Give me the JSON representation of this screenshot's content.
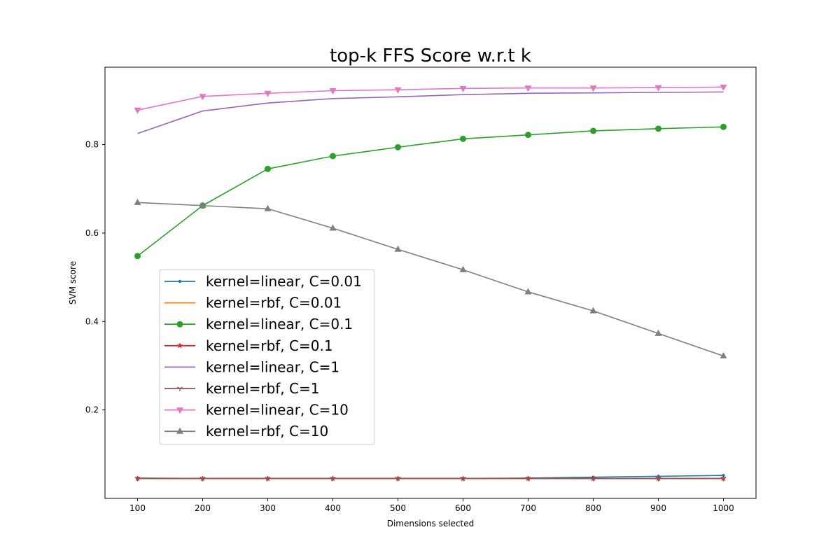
{
  "chart_data": {
    "type": "line",
    "title": "top-k FFS Score w.r.t k",
    "xlabel": "Dimensions selected",
    "ylabel": "SVM score",
    "x": [
      100,
      200,
      300,
      400,
      500,
      600,
      700,
      800,
      900,
      1000
    ],
    "xlim": [
      50,
      1050
    ],
    "ylim": [
      0.0,
      0.975
    ],
    "xticks": [
      100,
      200,
      300,
      400,
      500,
      600,
      700,
      800,
      900,
      1000
    ],
    "yticks": [
      0.2,
      0.4,
      0.6,
      0.8
    ],
    "grid": false,
    "legend_position": "center-left",
    "series": [
      {
        "name": "kernel=linear, C=0.01",
        "color": "#1f77b4",
        "marker": "point",
        "values": [
          0.046,
          0.045,
          0.045,
          0.045,
          0.045,
          0.045,
          0.046,
          0.048,
          0.05,
          0.052
        ]
      },
      {
        "name": "kernel=rbf, C=0.01",
        "color": "#ff7f0e",
        "marker": "none",
        "values": [
          0.045,
          0.045,
          0.045,
          0.045,
          0.045,
          0.045,
          0.045,
          0.045,
          0.045,
          0.045
        ]
      },
      {
        "name": "kernel=linear, C=0.1",
        "color": "#2ca02c",
        "marker": "circle",
        "values": [
          0.548,
          0.662,
          0.745,
          0.774,
          0.794,
          0.813,
          0.822,
          0.831,
          0.836,
          0.84
        ]
      },
      {
        "name": "kernel=rbf, C=0.1",
        "color": "#d62728",
        "marker": "star",
        "values": [
          0.045,
          0.045,
          0.045,
          0.045,
          0.045,
          0.045,
          0.045,
          0.045,
          0.045,
          0.045
        ]
      },
      {
        "name": "kernel=linear, C=1",
        "color": "#9467bd",
        "marker": "none",
        "values": [
          0.825,
          0.876,
          0.894,
          0.904,
          0.908,
          0.913,
          0.916,
          0.917,
          0.918,
          0.919
        ]
      },
      {
        "name": "kernel=rbf, C=1",
        "color": "#8c564b",
        "marker": "tri_down",
        "values": [
          0.045,
          0.045,
          0.045,
          0.045,
          0.045,
          0.045,
          0.045,
          0.045,
          0.045,
          0.045
        ]
      },
      {
        "name": "kernel=linear, C=10",
        "color": "#e377c2",
        "marker": "triangle_down",
        "values": [
          0.878,
          0.909,
          0.916,
          0.922,
          0.924,
          0.927,
          0.928,
          0.928,
          0.929,
          0.93
        ]
      },
      {
        "name": "kernel=rbf, C=10",
        "color": "#7f7f7f",
        "marker": "triangle_up",
        "values": [
          0.669,
          0.662,
          0.655,
          0.611,
          0.563,
          0.517,
          0.467,
          0.424,
          0.373,
          0.322
        ]
      }
    ]
  }
}
